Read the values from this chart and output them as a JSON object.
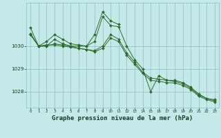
{
  "bg_color": "#c5e8e8",
  "grid_color": "#8abfbf",
  "line_color": "#2d6a2d",
  "title": "Graphe pression niveau de la mer (hPa)",
  "title_fontsize": 6.5,
  "tick_color": "#1a3a1a",
  "ylim": [
    1027.3,
    1031.9
  ],
  "xlim": [
    -0.5,
    23.5
  ],
  "yticks": [
    1028,
    1029,
    1030
  ],
  "xticks": [
    0,
    1,
    2,
    3,
    4,
    5,
    6,
    7,
    8,
    9,
    10,
    11,
    12,
    13,
    14,
    15,
    16,
    17,
    18,
    19,
    20,
    21,
    22,
    23
  ],
  "series": [
    {
      "x": [
        0,
        1,
        2,
        3,
        4,
        5,
        6,
        7,
        8,
        9,
        10,
        11,
        12,
        13,
        14,
        15,
        16,
        17,
        18,
        19,
        20,
        21,
        22,
        23
      ],
      "y": [
        1030.55,
        1030.0,
        1030.0,
        1030.3,
        1030.1,
        1030.0,
        1030.0,
        1030.0,
        1030.2,
        1031.3,
        1030.9,
        1030.85,
        1030.0,
        1029.4,
        1029.0,
        1028.0,
        1028.7,
        1028.5,
        1028.5,
        1028.4,
        1028.2,
        1027.9,
        1027.7,
        1027.65
      ]
    },
    {
      "x": [
        0,
        1,
        2,
        3,
        4,
        5,
        6,
        7,
        8,
        9,
        10,
        11,
        12,
        13,
        14,
        15,
        16,
        17,
        18,
        19,
        20,
        21,
        22,
        23
      ],
      "y": [
        1030.5,
        1030.0,
        1030.0,
        1030.1,
        1030.05,
        1030.0,
        1029.9,
        1029.85,
        1029.8,
        1030.0,
        1030.5,
        1030.3,
        1029.7,
        1029.3,
        1028.85,
        1028.6,
        1028.55,
        1028.5,
        1028.45,
        1028.35,
        1028.15,
        1027.85,
        1027.7,
        1027.6
      ]
    },
    {
      "x": [
        0,
        1,
        2,
        3,
        4,
        5,
        6,
        7,
        8,
        9,
        10,
        11,
        12,
        13,
        14,
        15,
        16,
        17,
        18,
        19,
        20,
        21,
        22,
        23
      ],
      "y": [
        1030.5,
        1030.0,
        1030.05,
        1030.05,
        1030.0,
        1029.95,
        1029.9,
        1029.85,
        1029.75,
        1029.9,
        1030.35,
        1030.2,
        1029.6,
        1029.2,
        1028.8,
        1028.5,
        1028.45,
        1028.4,
        1028.38,
        1028.28,
        1028.1,
        1027.8,
        1027.65,
        1027.55
      ]
    },
    {
      "x": [
        0,
        1,
        2,
        3,
        4,
        5,
        6,
        7,
        8,
        9,
        10,
        11
      ],
      "y": [
        1030.8,
        1030.0,
        1030.2,
        1030.5,
        1030.3,
        1030.1,
        1030.05,
        1030.0,
        1030.5,
        1031.5,
        1031.1,
        1030.95
      ]
    }
  ]
}
